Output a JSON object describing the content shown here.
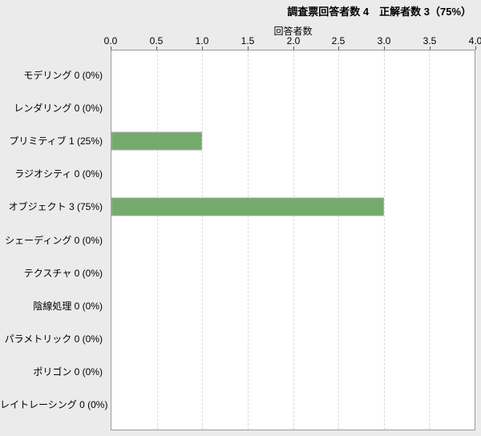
{
  "header": {
    "title": "調査票回答者数 4　正解者数 3（75%）",
    "respondents_label": "調査票回答者数",
    "respondents_count": 4,
    "correct_label": "正解者数",
    "correct_count": 3,
    "correct_percent": "75%"
  },
  "chart_data": {
    "type": "bar",
    "orientation": "horizontal",
    "title": "調査票回答者数 4　正解者数 3（75%）",
    "xlabel": "回答者数",
    "ylabel": "",
    "categories": [
      "モデリング",
      "レンダリング",
      "プリミティブ",
      "ラジオシティ",
      "オブジェクト",
      "シェーディング",
      "テクスチャ",
      "陰線処理",
      "パラメトリック",
      "ポリゴン",
      "レイトレーシング"
    ],
    "values": [
      0,
      0,
      1,
      0,
      3,
      0,
      0,
      0,
      0,
      0,
      0
    ],
    "percentages": [
      "0%",
      "0%",
      "25%",
      "0%",
      "75%",
      "0%",
      "0%",
      "0%",
      "0%",
      "0%",
      "0%"
    ],
    "category_labels": [
      "モデリング 0 (0%)",
      "レンダリング 0 (0%)",
      "プリミティブ 1 (25%)",
      "ラジオシティ 0 (0%)",
      "オブジェクト 3 (75%)",
      "シェーディング 0 (0%)",
      "テクスチャ 0 (0%)",
      "陰線処理 0 (0%)",
      "パラメトリック 0 (0%)",
      "ポリゴン 0 (0%)",
      "レイトレーシング 0 (0%)"
    ],
    "xlim": [
      0,
      4
    ],
    "xtick_labels": [
      "0.0",
      "0.5",
      "1.0",
      "1.5",
      "2.0",
      "2.5",
      "3.0",
      "3.5",
      "4.0"
    ],
    "xaxis_position": "top",
    "grid": {
      "axis": "x",
      "style": "dashed",
      "steps": 8
    },
    "legend": "none"
  },
  "colors": {
    "background": "#ebebeb",
    "plot_background": "#ffffff",
    "plot_border": "#9b9b9b",
    "gridline": "#d9d9d9",
    "bar_fill": "#74ab6c",
    "bar_border": "#a8a8a8",
    "tick_mark": "#555555",
    "text": "#000000"
  }
}
